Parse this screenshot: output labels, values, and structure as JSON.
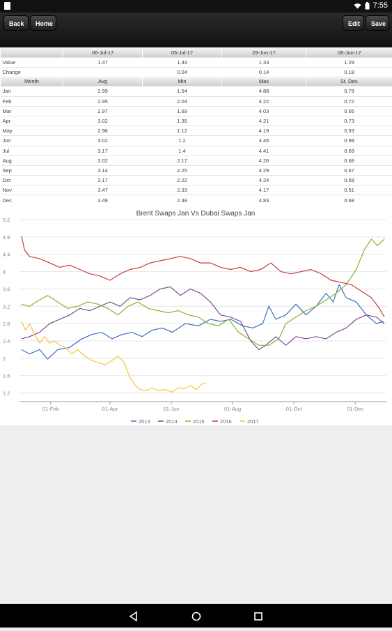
{
  "status_bar": {
    "time": "7:55",
    "wifi_icon": "wifi-icon",
    "battery_icon": "battery-icon"
  },
  "toolbar": {
    "back_label": "Back",
    "home_label": "Home",
    "edit_label": "Edit",
    "save_label": "Save"
  },
  "summary_table": {
    "header": [
      "",
      "06-Jul-17",
      "05-Jul-17",
      "29-Jun-17",
      "08-Jun-17"
    ],
    "rows": [
      [
        "Value",
        "1.47",
        "1.43",
        "1.33",
        "1.29"
      ],
      [
        "Change",
        "",
        "0.04",
        "0.14",
        "0.18"
      ]
    ]
  },
  "month_table": {
    "header": [
      "Month",
      "Avg",
      "Min",
      "Max",
      "St. Dev."
    ],
    "rows": [
      [
        "Jan",
        "2.99",
        "1.54",
        "4.88",
        "0.79"
      ],
      [
        "Feb",
        "2.95",
        "2.04",
        "4.22",
        "0.72"
      ],
      [
        "Mar",
        "2.97",
        "1.69",
        "4.03",
        "0.65"
      ],
      [
        "Apr",
        "3.02",
        "1.35",
        "4.21",
        "0.73"
      ],
      [
        "May",
        "2.96",
        "1.12",
        "4.19",
        "0.93"
      ],
      [
        "Jun",
        "3.02",
        "1.2",
        "4.45",
        "0.99"
      ],
      [
        "Jul",
        "3.17",
        "1.4",
        "4.41",
        "0.69"
      ],
      [
        "Aug",
        "3.02",
        "2.17",
        "4.26",
        "0.68"
      ],
      [
        "Sep",
        "3.14",
        "2.25",
        "4.29",
        "0.67"
      ],
      [
        "Oct",
        "3.17",
        "2.22",
        "4.24",
        "0.58"
      ],
      [
        "Nov",
        "3.47",
        "2.33",
        "4.17",
        "0.51"
      ],
      [
        "Dec",
        "3.49",
        "2.48",
        "4.83",
        "0.68"
      ]
    ]
  },
  "chart_data": {
    "type": "line",
    "title": "Brent Swaps Jan Vs Dubai Swaps Jan",
    "xlabel": "",
    "ylabel": "",
    "ylim": [
      1.0,
      5.2
    ],
    "y_ticks": [
      "1.2",
      "1.6",
      "2",
      "2.4",
      "2.8",
      "3.2",
      "3.6",
      "4",
      "4.4",
      "4.8",
      "5.2"
    ],
    "x_ticks": [
      "01-Feb",
      "01-Apr",
      "01-Jun",
      "01-Aug",
      "01-Oct",
      "01-Dec"
    ],
    "x_tick_day": [
      31,
      90,
      151,
      212,
      273,
      334
    ],
    "xlim_day": [
      0,
      365
    ],
    "grid": "horizontal",
    "legend_position": "bottom",
    "series": [
      {
        "name": "2013",
        "color": "#3a6fc4",
        "points": [
          [
            2,
            2.2
          ],
          [
            10,
            2.1
          ],
          [
            20,
            2.2
          ],
          [
            28,
            1.98
          ],
          [
            38,
            2.2
          ],
          [
            50,
            2.25
          ],
          [
            62,
            2.45
          ],
          [
            72,
            2.55
          ],
          [
            82,
            2.6
          ],
          [
            92,
            2.45
          ],
          [
            102,
            2.55
          ],
          [
            112,
            2.6
          ],
          [
            122,
            2.5
          ],
          [
            132,
            2.65
          ],
          [
            142,
            2.7
          ],
          [
            152,
            2.6
          ],
          [
            165,
            2.8
          ],
          [
            178,
            2.75
          ],
          [
            190,
            2.9
          ],
          [
            200,
            2.85
          ],
          [
            210,
            2.9
          ],
          [
            222,
            2.75
          ],
          [
            232,
            2.7
          ],
          [
            242,
            2.8
          ],
          [
            248,
            3.2
          ],
          [
            255,
            2.9
          ],
          [
            265,
            3.0
          ],
          [
            275,
            3.25
          ],
          [
            285,
            3.0
          ],
          [
            295,
            3.2
          ],
          [
            305,
            3.5
          ],
          [
            312,
            3.3
          ],
          [
            318,
            3.7
          ],
          [
            325,
            3.4
          ],
          [
            335,
            3.3
          ],
          [
            345,
            3.0
          ],
          [
            355,
            2.8
          ],
          [
            362,
            2.85
          ]
        ]
      },
      {
        "name": "2014",
        "color": "#7b4a8e",
        "points": [
          [
            2,
            2.45
          ],
          [
            10,
            2.5
          ],
          [
            20,
            2.6
          ],
          [
            30,
            2.8
          ],
          [
            40,
            2.9
          ],
          [
            50,
            3.0
          ],
          [
            60,
            3.15
          ],
          [
            70,
            3.1
          ],
          [
            80,
            3.2
          ],
          [
            90,
            3.3
          ],
          [
            100,
            3.2
          ],
          [
            110,
            3.4
          ],
          [
            120,
            3.35
          ],
          [
            130,
            3.45
          ],
          [
            140,
            3.6
          ],
          [
            150,
            3.65
          ],
          [
            160,
            3.45
          ],
          [
            170,
            3.6
          ],
          [
            180,
            3.5
          ],
          [
            190,
            3.3
          ],
          [
            200,
            3.0
          ],
          [
            210,
            2.95
          ],
          [
            220,
            2.85
          ],
          [
            230,
            2.4
          ],
          [
            238,
            2.2
          ],
          [
            245,
            2.3
          ],
          [
            255,
            2.5
          ],
          [
            265,
            2.3
          ],
          [
            275,
            2.5
          ],
          [
            285,
            2.45
          ],
          [
            295,
            2.5
          ],
          [
            305,
            2.45
          ],
          [
            315,
            2.6
          ],
          [
            325,
            2.7
          ],
          [
            335,
            2.9
          ],
          [
            345,
            3.0
          ],
          [
            355,
            2.95
          ],
          [
            363,
            2.8
          ]
        ]
      },
      {
        "name": "2015",
        "color": "#88b22a",
        "points": [
          [
            2,
            3.25
          ],
          [
            10,
            3.2
          ],
          [
            20,
            3.35
          ],
          [
            28,
            3.45
          ],
          [
            38,
            3.3
          ],
          [
            48,
            3.15
          ],
          [
            58,
            3.2
          ],
          [
            68,
            3.3
          ],
          [
            78,
            3.25
          ],
          [
            88,
            3.15
          ],
          [
            98,
            3.0
          ],
          [
            108,
            3.2
          ],
          [
            118,
            3.3
          ],
          [
            128,
            3.15
          ],
          [
            138,
            3.1
          ],
          [
            148,
            3.05
          ],
          [
            158,
            3.1
          ],
          [
            168,
            3.0
          ],
          [
            178,
            2.95
          ],
          [
            188,
            2.8
          ],
          [
            198,
            2.75
          ],
          [
            208,
            2.9
          ],
          [
            218,
            2.6
          ],
          [
            228,
            2.45
          ],
          [
            238,
            2.3
          ],
          [
            248,
            2.3
          ],
          [
            258,
            2.45
          ],
          [
            265,
            2.8
          ],
          [
            275,
            2.95
          ],
          [
            285,
            3.1
          ],
          [
            295,
            3.2
          ],
          [
            305,
            3.35
          ],
          [
            315,
            3.5
          ],
          [
            325,
            3.7
          ],
          [
            335,
            4.05
          ],
          [
            343,
            4.5
          ],
          [
            350,
            4.75
          ],
          [
            356,
            4.6
          ],
          [
            363,
            4.75
          ]
        ]
      },
      {
        "name": "2016",
        "color": "#c63b3b",
        "points": [
          [
            2,
            4.82
          ],
          [
            5,
            4.5
          ],
          [
            10,
            4.35
          ],
          [
            20,
            4.3
          ],
          [
            30,
            4.2
          ],
          [
            40,
            4.1
          ],
          [
            50,
            4.15
          ],
          [
            60,
            4.05
          ],
          [
            70,
            3.95
          ],
          [
            80,
            3.9
          ],
          [
            90,
            3.8
          ],
          [
            100,
            3.95
          ],
          [
            110,
            4.05
          ],
          [
            120,
            4.1
          ],
          [
            130,
            4.2
          ],
          [
            140,
            4.25
          ],
          [
            150,
            4.3
          ],
          [
            160,
            4.35
          ],
          [
            170,
            4.3
          ],
          [
            180,
            4.2
          ],
          [
            190,
            4.2
          ],
          [
            200,
            4.1
          ],
          [
            210,
            4.05
          ],
          [
            220,
            4.1
          ],
          [
            230,
            4.0
          ],
          [
            240,
            4.05
          ],
          [
            250,
            4.2
          ],
          [
            260,
            4.0
          ],
          [
            270,
            3.95
          ],
          [
            280,
            4.0
          ],
          [
            290,
            4.05
          ],
          [
            300,
            3.95
          ],
          [
            310,
            3.8
          ],
          [
            320,
            3.75
          ],
          [
            330,
            3.7
          ],
          [
            340,
            3.55
          ],
          [
            350,
            3.4
          ],
          [
            358,
            3.15
          ],
          [
            363,
            2.95
          ]
        ]
      },
      {
        "name": "2017",
        "color": "#f2c63b",
        "points": [
          [
            2,
            2.85
          ],
          [
            6,
            2.65
          ],
          [
            10,
            2.8
          ],
          [
            15,
            2.55
          ],
          [
            20,
            2.35
          ],
          [
            25,
            2.5
          ],
          [
            30,
            2.35
          ],
          [
            35,
            2.4
          ],
          [
            40,
            2.3
          ],
          [
            46,
            2.25
          ],
          [
            52,
            2.1
          ],
          [
            58,
            2.2
          ],
          [
            65,
            2.05
          ],
          [
            72,
            1.95
          ],
          [
            78,
            1.9
          ],
          [
            85,
            1.85
          ],
          [
            92,
            1.95
          ],
          [
            98,
            2.05
          ],
          [
            104,
            1.9
          ],
          [
            110,
            1.55
          ],
          [
            116,
            1.35
          ],
          [
            120,
            1.28
          ],
          [
            126,
            1.25
          ],
          [
            132,
            1.32
          ],
          [
            138,
            1.25
          ],
          [
            145,
            1.28
          ],
          [
            152,
            1.22
          ],
          [
            158,
            1.32
          ],
          [
            164,
            1.3
          ],
          [
            170,
            1.37
          ],
          [
            176,
            1.28
          ],
          [
            182,
            1.42
          ],
          [
            186,
            1.43
          ]
        ]
      }
    ]
  },
  "nav_bar": {
    "back_icon": "back-triangle-icon",
    "home_icon": "home-circle-icon",
    "recents_icon": "recents-square-icon"
  }
}
